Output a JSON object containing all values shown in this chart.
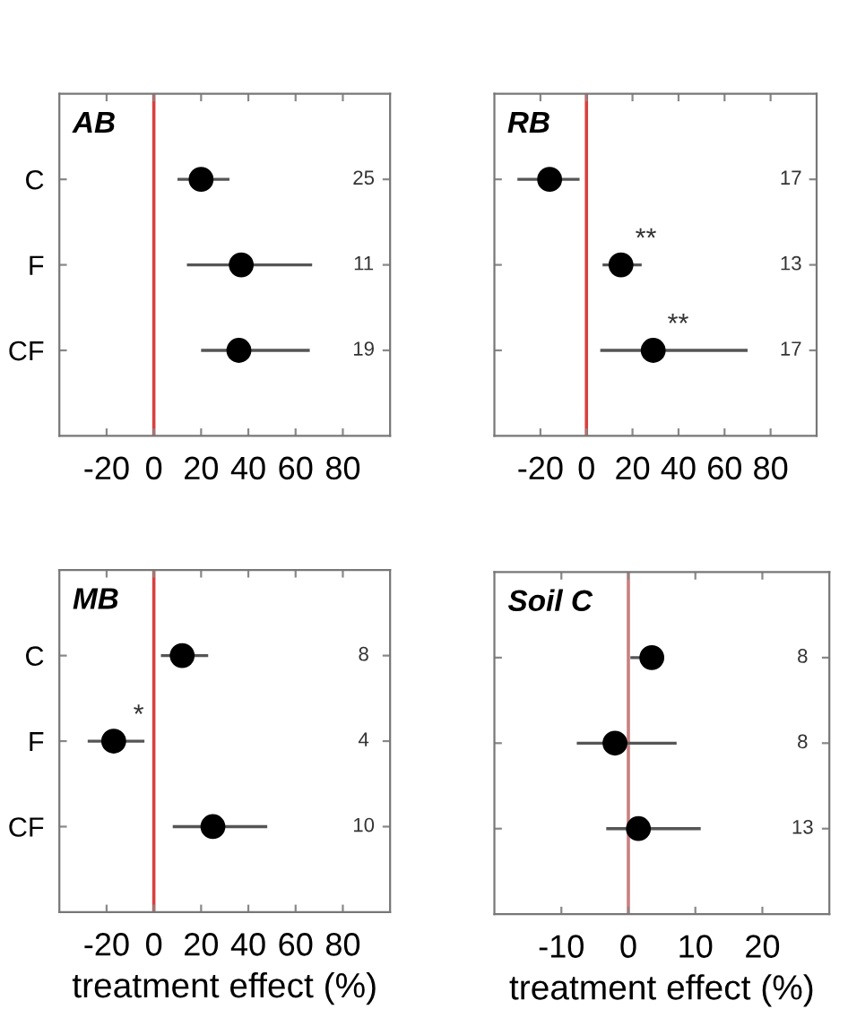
{
  "chart_data": [
    {
      "type": "scatter",
      "orientation": "horizontal",
      "title": "AB",
      "categories": [
        "C",
        "F",
        "CF"
      ],
      "values": [
        20,
        37,
        36
      ],
      "errors": [
        [
          10,
          32
        ],
        [
          14,
          67
        ],
        [
          20,
          66
        ]
      ],
      "color": "#000000",
      "marker": "circle",
      "xlim": [
        -40,
        100
      ],
      "xticks": [
        -20,
        0,
        20,
        40,
        60,
        80
      ],
      "ref_lines": [
        {
          "axis": "x",
          "value": 0,
          "color": "#d94040"
        }
      ],
      "annotations": [
        "25",
        "11",
        "19"
      ],
      "grid": false,
      "legend": false
    },
    {
      "type": "scatter",
      "orientation": "horizontal",
      "title": "RB",
      "categories": [
        "C",
        "F",
        "CF"
      ],
      "values": [
        -16,
        15,
        29
      ],
      "errors": [
        [
          -30,
          -3
        ],
        [
          7,
          24
        ],
        [
          6,
          70
        ]
      ],
      "color": "#000000",
      "marker": "circle",
      "xlim": [
        -40,
        100
      ],
      "xticks": [
        -20,
        0,
        20,
        40,
        60,
        80
      ],
      "ref_lines": [
        {
          "axis": "x",
          "value": 0,
          "color": "#d94040"
        }
      ],
      "annotations": [
        "17",
        "13",
        "17",
        {
          "text": "**",
          "x": 15,
          "y": "F"
        },
        {
          "text": "**",
          "x": 29,
          "y": "CF"
        }
      ],
      "tick_labels": "x",
      "grid": false,
      "legend": false
    },
    {
      "type": "scatter",
      "orientation": "horizontal",
      "title": "MB",
      "categories": [
        "C",
        "F",
        "CF"
      ],
      "values": [
        12,
        -17,
        25
      ],
      "errors": [
        [
          3,
          23
        ],
        [
          -28,
          -4
        ],
        [
          8,
          48
        ]
      ],
      "color": "#000000",
      "marker": "circle",
      "xlim": [
        -40,
        100
      ],
      "xticks": [
        -20,
        0,
        20,
        40,
        60,
        80
      ],
      "xlabel": "treatment effect (%)",
      "ref_lines": [
        {
          "axis": "x",
          "value": 0,
          "color": "#d94040"
        }
      ],
      "annotations": [
        "8",
        "4",
        "10",
        {
          "text": "*",
          "x": -17,
          "y": "F"
        }
      ],
      "grid": false,
      "legend": false
    },
    {
      "type": "scatter",
      "orientation": "horizontal",
      "title": "Soil C",
      "categories": [
        "C",
        "F",
        "CF"
      ],
      "values": [
        3.5,
        -2,
        1.5
      ],
      "errors": [
        [
          0.3,
          4.5
        ],
        [
          -7.7,
          7.2
        ],
        [
          -3.3,
          10.8
        ]
      ],
      "color": "#000000",
      "marker": "circle",
      "xlim": [
        -20,
        30
      ],
      "xticks": [
        -10,
        0,
        10,
        20
      ],
      "xlabel": "treatment effect (%)",
      "ref_lines": [
        {
          "axis": "x",
          "value": 0,
          "color": "#c88080"
        }
      ],
      "annotations": [
        "8",
        "8",
        "13"
      ],
      "tick_labels": "x",
      "grid": false,
      "legend": false
    }
  ]
}
